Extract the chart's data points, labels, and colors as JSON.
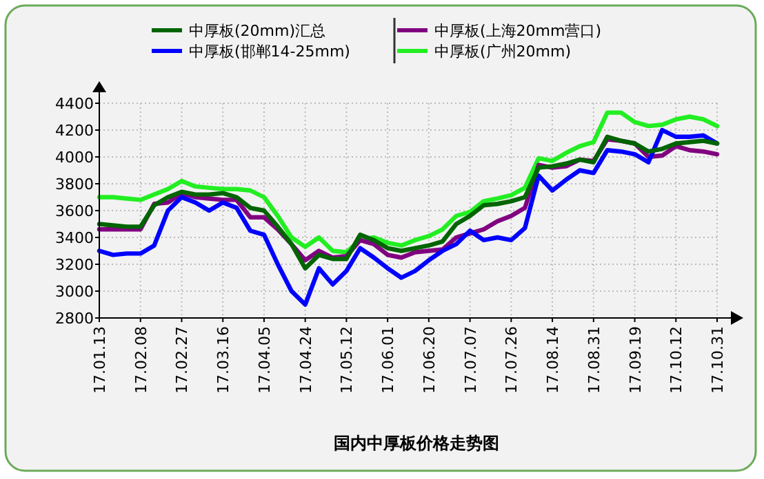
{
  "chart_data": {
    "type": "line",
    "title": "国内中厚板价格走势图",
    "categories": [
      "17.01.13",
      null,
      null,
      "17.02.08",
      null,
      null,
      "17.02.27",
      null,
      null,
      "17.03.16",
      null,
      null,
      "17.04.05",
      null,
      null,
      "17.04.24",
      null,
      null,
      "17.05.12",
      null,
      null,
      "17.06.01",
      null,
      null,
      "17.06.20",
      null,
      null,
      "17.07.07",
      null,
      null,
      "17.07.26",
      null,
      null,
      "17.08.14",
      null,
      null,
      "17.08.31",
      null,
      null,
      "17.09.19",
      null,
      null,
      "17.10.12",
      null,
      null,
      "17.10.31"
    ],
    "series": [
      {
        "name": "中厚板(20mm)汇总",
        "color": "#006400",
        "values": [
          3500,
          3490,
          3480,
          3480,
          3640,
          3700,
          3740,
          3720,
          3720,
          3730,
          3700,
          3620,
          3600,
          3480,
          3350,
          3170,
          3270,
          3240,
          3240,
          3420,
          3380,
          3320,
          3300,
          3320,
          3340,
          3370,
          3500,
          3560,
          3640,
          3650,
          3670,
          3700,
          3920,
          3930,
          3950,
          3980,
          3960,
          4150,
          4120,
          4100,
          4040,
          4060,
          4100,
          4110,
          4120,
          4100
        ]
      },
      {
        "name": "中厚板(邯郸14-25mm)",
        "color": "#0000ff",
        "values": [
          3300,
          3270,
          3280,
          3280,
          3340,
          3600,
          3700,
          3660,
          3600,
          3660,
          3620,
          3450,
          3420,
          3200,
          3000,
          2900,
          3170,
          3050,
          3150,
          3320,
          3250,
          3170,
          3100,
          3150,
          3230,
          3300,
          3350,
          3450,
          3380,
          3400,
          3380,
          3470,
          3860,
          3750,
          3830,
          3900,
          3880,
          4050,
          4040,
          4020,
          3960,
          4200,
          4150,
          4150,
          4160,
          4100
        ]
      },
      {
        "name": "中厚板(上海20mm营口)",
        "color": "#800080",
        "values": [
          3460,
          3460,
          3460,
          3460,
          3650,
          3660,
          3730,
          3700,
          3690,
          3680,
          3680,
          3550,
          3550,
          3460,
          3350,
          3230,
          3300,
          3250,
          3260,
          3380,
          3350,
          3270,
          3250,
          3290,
          3300,
          3310,
          3400,
          3430,
          3460,
          3520,
          3560,
          3620,
          3940,
          3920,
          3930,
          3980,
          3970,
          4130,
          4120,
          4100,
          4000,
          4010,
          4080,
          4050,
          4040,
          4020
        ]
      },
      {
        "name": "中厚板(广州20mm)",
        "color": "#22ee22",
        "values": [
          3700,
          3700,
          3690,
          3680,
          3720,
          3760,
          3820,
          3780,
          3770,
          3760,
          3760,
          3750,
          3700,
          3560,
          3400,
          3330,
          3400,
          3300,
          3290,
          3380,
          3400,
          3360,
          3340,
          3380,
          3410,
          3460,
          3560,
          3590,
          3670,
          3690,
          3715,
          3770,
          3990,
          3970,
          4030,
          4080,
          4110,
          4330,
          4330,
          4260,
          4230,
          4240,
          4280,
          4300,
          4280,
          4230
        ]
      }
    ],
    "ylim": [
      2800,
      4400
    ],
    "yticks": [
      2800,
      3000,
      3200,
      3400,
      3600,
      3800,
      4000,
      4200,
      4400
    ],
    "grid": true,
    "legend": "top",
    "marker": "none",
    "line_style": "solid"
  }
}
